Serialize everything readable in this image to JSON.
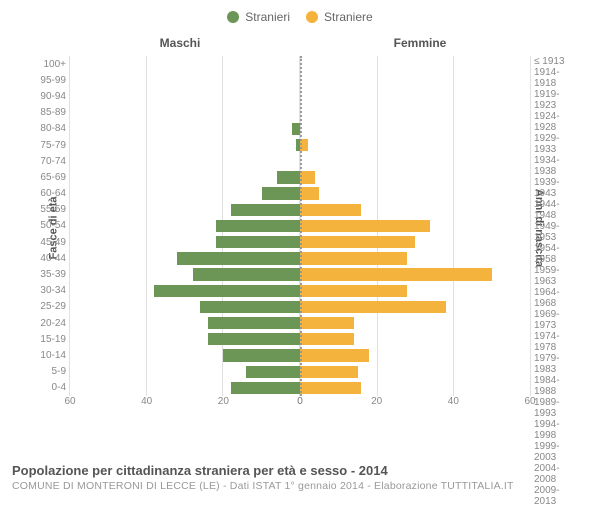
{
  "chart": {
    "type": "population-pyramid",
    "title": "Popolazione per cittadinanza straniera per età e sesso - 2014",
    "subtitle": "COMUNE DI MONTERONI DI LECCE (LE) - Dati ISTAT 1° gennaio 2014 - Elaborazione TUTTITALIA.IT",
    "legend": {
      "male": {
        "label": "Stranieri",
        "color": "#6b9656"
      },
      "female": {
        "label": "Straniere",
        "color": "#f3b33c"
      }
    },
    "header": {
      "left": "Maschi",
      "right": "Femmine"
    },
    "y_axis_left": {
      "title": "Fasce di età"
    },
    "y_axis_right": {
      "title": "Anni di nascita"
    },
    "x_axis": {
      "max": 60,
      "ticks": [
        0,
        20,
        40,
        60
      ]
    },
    "style": {
      "grid_color": "#e0e0e0",
      "center_line_color": "#999999",
      "background_color": "#ffffff",
      "tick_font_size": 10,
      "label_font_size": 10,
      "bar_gap_pct": 12
    },
    "rows": [
      {
        "age": "100+",
        "year": "≤ 1913",
        "m": 0,
        "f": 0
      },
      {
        "age": "95-99",
        "year": "1914-1918",
        "m": 0,
        "f": 0
      },
      {
        "age": "90-94",
        "year": "1919-1923",
        "m": 0,
        "f": 0
      },
      {
        "age": "85-89",
        "year": "1924-1928",
        "m": 0,
        "f": 0
      },
      {
        "age": "80-84",
        "year": "1929-1933",
        "m": 2,
        "f": 0
      },
      {
        "age": "75-79",
        "year": "1934-1938",
        "m": 1,
        "f": 2
      },
      {
        "age": "70-74",
        "year": "1939-1943",
        "m": 0,
        "f": 0
      },
      {
        "age": "65-69",
        "year": "1944-1948",
        "m": 6,
        "f": 4
      },
      {
        "age": "60-64",
        "year": "1949-1953",
        "m": 10,
        "f": 5
      },
      {
        "age": "55-59",
        "year": "1954-1958",
        "m": 18,
        "f": 16
      },
      {
        "age": "50-54",
        "year": "1959-1963",
        "m": 22,
        "f": 34
      },
      {
        "age": "45-49",
        "year": "1964-1968",
        "m": 22,
        "f": 30
      },
      {
        "age": "40-44",
        "year": "1969-1973",
        "m": 32,
        "f": 28
      },
      {
        "age": "35-39",
        "year": "1974-1978",
        "m": 28,
        "f": 50
      },
      {
        "age": "30-34",
        "year": "1979-1983",
        "m": 38,
        "f": 28
      },
      {
        "age": "25-29",
        "year": "1984-1988",
        "m": 26,
        "f": 38
      },
      {
        "age": "20-24",
        "year": "1989-1993",
        "m": 24,
        "f": 14
      },
      {
        "age": "15-19",
        "year": "1994-1998",
        "m": 24,
        "f": 14
      },
      {
        "age": "10-14",
        "year": "1999-2003",
        "m": 20,
        "f": 18
      },
      {
        "age": "5-9",
        "year": "2004-2008",
        "m": 14,
        "f": 15
      },
      {
        "age": "0-4",
        "year": "2009-2013",
        "m": 18,
        "f": 16
      }
    ]
  }
}
